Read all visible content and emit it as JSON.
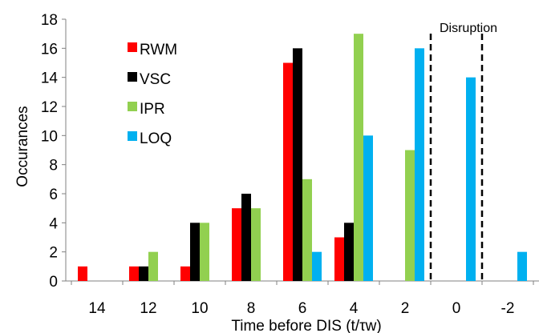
{
  "chart_data": {
    "type": "bar",
    "xlabel": "Time before DIS (t/τw)",
    "ylabel": "Occurances",
    "ylim": [
      0,
      18
    ],
    "yticks": [
      0,
      2,
      4,
      6,
      8,
      10,
      12,
      14,
      16,
      18
    ],
    "categories": [
      "14",
      "12",
      "10",
      "8",
      "6",
      "4",
      "2",
      "0",
      "-2"
    ],
    "series": [
      {
        "name": "RWM",
        "color": "#ff0000",
        "values": [
          1,
          1,
          1,
          5,
          15,
          3,
          0,
          0,
          0
        ]
      },
      {
        "name": "VSC",
        "color": "#000000",
        "values": [
          0,
          1,
          4,
          6,
          16,
          4,
          0,
          0,
          0
        ]
      },
      {
        "name": "IPR",
        "color": "#92d050",
        "values": [
          0,
          2,
          4,
          5,
          7,
          17,
          9,
          0,
          0
        ]
      },
      {
        "name": "LOQ",
        "color": "#00b0f0",
        "values": [
          0,
          0,
          0,
          0,
          2,
          10,
          16,
          14,
          2
        ]
      }
    ],
    "annotation": "Disruption",
    "disruption_lines_between": [
      [
        "2",
        "0"
      ],
      [
        "0",
        "-2"
      ]
    ],
    "grid": false,
    "legend": "left-inside"
  }
}
